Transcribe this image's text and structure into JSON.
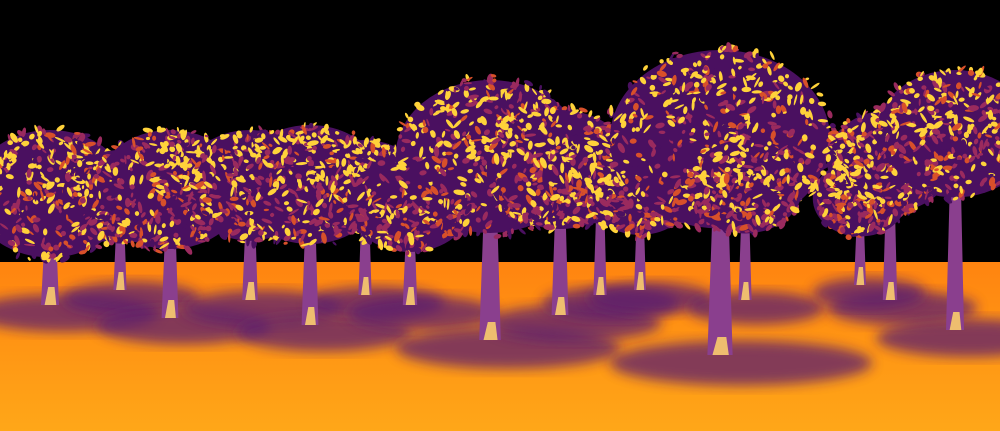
{
  "scene": {
    "subject": "orchard",
    "colors": {
      "sky": "#000000",
      "ground_far": "#ff8c1a",
      "ground_near": "#ffa31a",
      "shadow": "#5a1f6e",
      "trunk": "#8a3f8e",
      "trunk_highlight": "#ffd56a",
      "canopy_dark": "#4a1060",
      "canopy_mid": "#9a2a5e",
      "canopy_warm": "#d8502a",
      "canopy_highlight": "#ffd23a"
    }
  }
}
